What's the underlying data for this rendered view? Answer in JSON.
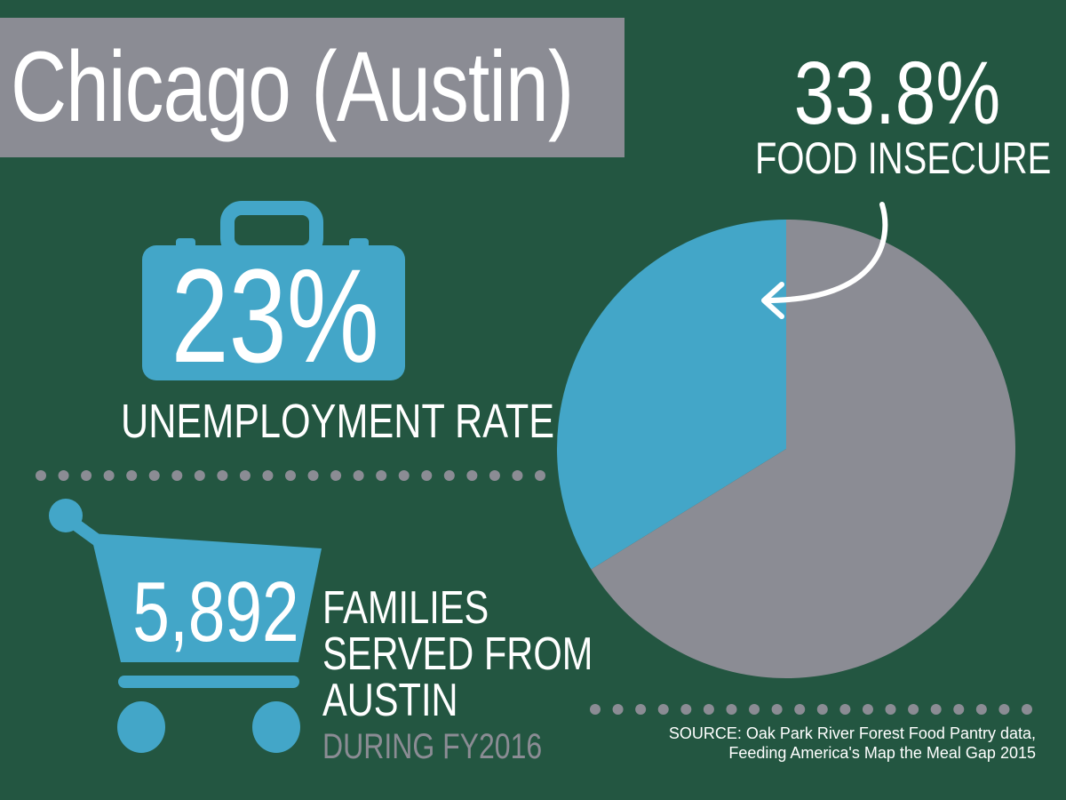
{
  "title": "Chicago (Austin)",
  "food_insecure": {
    "percent_label": "33.8%",
    "label": "FOOD INSECURE"
  },
  "unemployment": {
    "percent_label": "23%",
    "label": "UNEMPLOYMENT RATE"
  },
  "families": {
    "count": "5,892",
    "label_lines": [
      "FAMILIES",
      "SERVED FROM",
      "AUSTIN"
    ],
    "period": "DURING FY2016"
  },
  "source": {
    "lines": [
      "SOURCE: Oak Park River Forest Food Pantry data,",
      "Feeding America's Map the Meal Gap 2015"
    ]
  },
  "icons": [
    "briefcase-icon",
    "shopping-cart-icon",
    "curved-arrow-icon"
  ],
  "colors": {
    "background": "#235641",
    "accent_blue": "#43a6c8",
    "gray": "#8b8c94",
    "text": "#ffffff"
  },
  "chart_data": {
    "type": "pie",
    "values": [
      33.8,
      66.2
    ],
    "colors": [
      "#43a6c8",
      "#8b8c94"
    ],
    "start_angle_deg": 0,
    "direction": "counterclockwise"
  }
}
